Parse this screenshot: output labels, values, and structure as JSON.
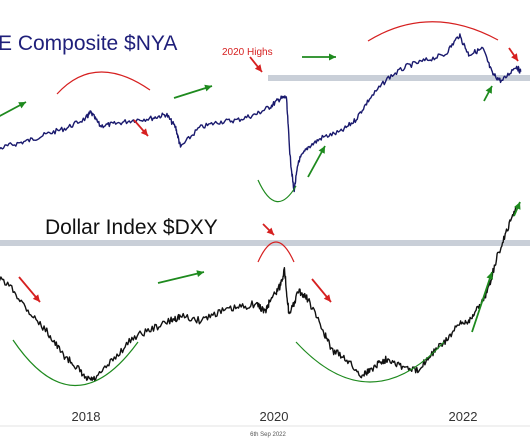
{
  "chart_data": [
    {
      "type": "line",
      "title": "E Composite $NYA",
      "series": [
        {
          "name": "E Composite $NYA",
          "color": "#1a1a6e",
          "x": [
            2016.4,
            2016.6,
            2016.8,
            2017.0,
            2017.2,
            2017.4,
            2017.6,
            2017.8,
            2018.0,
            2018.05,
            2018.15,
            2018.3,
            2018.5,
            2018.7,
            2018.85,
            2018.95,
            2019.0,
            2019.2,
            2019.4,
            2019.6,
            2019.8,
            2019.95,
            2020.05,
            2020.12,
            2020.16,
            2020.2,
            2020.25,
            2020.35,
            2020.5,
            2020.7,
            2020.85,
            2021.0,
            2021.2,
            2021.4,
            2021.6,
            2021.8,
            2021.95,
            2022.05,
            2022.2,
            2022.3,
            2022.4,
            2022.55,
            2022.6
          ],
          "y": [
            10400,
            10550,
            10700,
            11300,
            11600,
            11850,
            12200,
            12500,
            13000,
            13300,
            12600,
            12700,
            12900,
            13000,
            13200,
            12500,
            11500,
            12500,
            12800,
            12900,
            13200,
            13600,
            14000,
            14100,
            11000,
            9200,
            10800,
            11500,
            12000,
            12300,
            12900,
            14000,
            15100,
            15700,
            16000,
            16300,
            17300,
            16300,
            16600,
            15300,
            14900,
            15700,
            15400
          ]
        }
      ],
      "ylim": [
        8500,
        18500
      ],
      "annotations": [
        "2020 Highs"
      ]
    },
    {
      "type": "line",
      "title": "Dollar Index $DXY",
      "series": [
        {
          "name": "Dollar Index $DXY",
          "color": "#111111",
          "x": [
            2016.4,
            2016.6,
            2016.8,
            2017.0,
            2017.2,
            2017.4,
            2017.6,
            2017.75,
            2017.9,
            2018.0,
            2018.1,
            2018.3,
            2018.5,
            2018.7,
            2018.9,
            2019.0,
            2019.2,
            2019.4,
            2019.6,
            2019.8,
            2019.9,
            2019.95,
            2020.05,
            2020.1,
            2020.15,
            2020.25,
            2020.35,
            2020.5,
            2020.6,
            2020.75,
            2020.9,
            2021.0,
            2021.1,
            2021.2,
            2021.35,
            2021.5,
            2021.65,
            2021.8,
            2021.95,
            2022.05,
            2022.15,
            2022.25,
            2022.35,
            2022.45,
            2022.55
          ],
          "y": [
            96,
            98,
            100,
            102,
            100.5,
            97.5,
            95,
            92.5,
            91,
            89.5,
            89.5,
            92,
            94.5,
            95.5,
            96.5,
            97,
            96.5,
            97.5,
            98,
            98.5,
            97.5,
            99,
            100.5,
            102.5,
            97,
            100,
            99,
            95.5,
            93,
            92,
            90,
            90.5,
            91.5,
            92,
            91,
            90.5,
            92.5,
            94,
            96,
            96.5,
            98,
            100,
            104,
            107,
            110
          ]
        }
      ],
      "ylim": [
        88,
        112
      ]
    }
  ],
  "axis": {
    "x_ticks": [
      "2018",
      "2020",
      "2022"
    ]
  },
  "footer": {
    "date_label": "6th Sep 2022"
  },
  "colors": {
    "nya_line": "#1a1a6e",
    "dxy_line": "#111111",
    "arrow_up": "#1e8a1e",
    "arrow_down": "#d62020",
    "highlight_band": "#c9cfd8",
    "peak_arc": "#d62020",
    "trough_arc": "#1e8a1e"
  }
}
